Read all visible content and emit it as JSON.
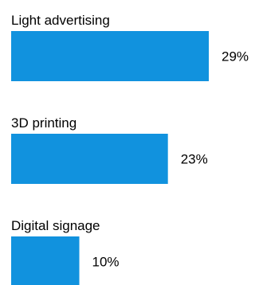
{
  "chart_data": {
    "type": "bar",
    "orientation": "horizontal",
    "title": "",
    "xlabel": "",
    "ylabel": "",
    "categories": [
      "Light advertising",
      "3D printing",
      "Digital signage"
    ],
    "values": [
      29,
      23,
      10
    ],
    "value_labels": [
      "29%",
      "23%",
      "10%"
    ],
    "unit": "%",
    "xlim": [
      0,
      29
    ],
    "grid": false,
    "legend": "none",
    "bar_color": "#1192DE"
  }
}
